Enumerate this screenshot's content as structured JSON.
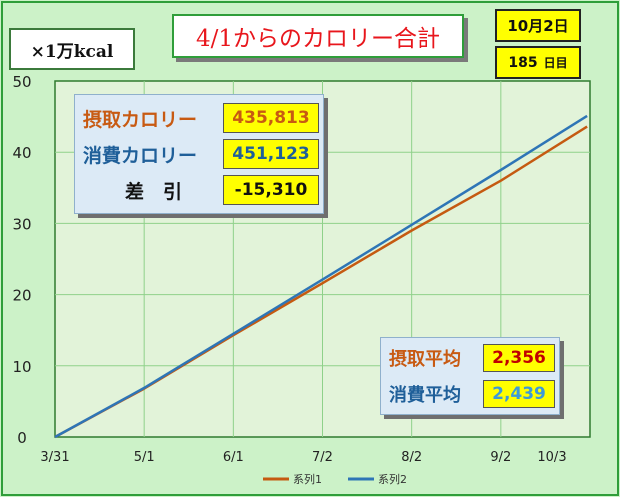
{
  "unit_label": "×1万kcal",
  "title": "4/1からのカロリー合計",
  "date_label": "10月2日",
  "day_count": "185",
  "day_suffix": "日目",
  "summary": {
    "intake_label": "摂取カロリー",
    "intake_value": "435,813",
    "expend_label": "消費カロリー",
    "expend_value": "451,123",
    "diff_label": "差　引",
    "diff_value": "-15,310"
  },
  "averages": {
    "intake_avg_label": "摂取平均",
    "intake_avg_value": "2,356",
    "expend_avg_label": "消費平均",
    "expend_avg_value": "2,439"
  },
  "colors": {
    "series1": "#c55a11",
    "series2": "#2e75b6",
    "plot_bg": "#e2f3d9",
    "grid": "#8fd18a"
  },
  "chart_data": {
    "type": "line",
    "x_tick_labels": [
      "3/31",
      "5/1",
      "6/1",
      "7/2",
      "8/2",
      "9/2",
      "10/3"
    ],
    "x_range_days": [
      0,
      186
    ],
    "ylim": [
      0,
      50
    ],
    "y_ticks": [
      0,
      10,
      20,
      30,
      40,
      50
    ],
    "grid": true,
    "legend_position": "bottom",
    "series": [
      {
        "name": "系列1",
        "color": "#c55a11",
        "x": [
          0,
          31,
          62,
          93,
          124,
          155,
          185
        ],
        "values": [
          0,
          6.8,
          14.3,
          21.6,
          29.0,
          36.0,
          43.6
        ]
      },
      {
        "name": "系列2",
        "color": "#2e75b6",
        "x": [
          0,
          31,
          62,
          93,
          124,
          155,
          185
        ],
        "values": [
          0,
          6.9,
          14.5,
          22.1,
          29.8,
          37.5,
          45.1
        ]
      }
    ]
  }
}
